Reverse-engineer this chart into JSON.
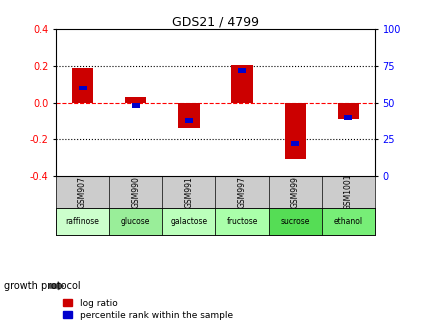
{
  "title": "GDS21 / 4799",
  "samples": [
    "GSM907",
    "GSM990",
    "GSM991",
    "GSM997",
    "GSM999",
    "GSM1001"
  ],
  "protocols": [
    "raffinose",
    "glucose",
    "galactose",
    "fructose",
    "sucrose",
    "ethanol"
  ],
  "log_ratios": [
    0.19,
    0.03,
    -0.14,
    0.205,
    -0.305,
    -0.09
  ],
  "percentile_ranks": [
    60,
    48,
    38,
    72,
    22,
    40
  ],
  "bar_color": "#cc0000",
  "pct_color": "#0000cc",
  "ylim": [
    -0.4,
    0.4
  ],
  "y2lim": [
    0,
    100
  ],
  "yticks": [
    -0.4,
    -0.2,
    0.0,
    0.2,
    0.4
  ],
  "y2ticks": [
    0,
    25,
    50,
    75,
    100
  ],
  "hlines": [
    -0.2,
    0.0,
    0.2
  ],
  "hline_styles": [
    "dotted",
    "dashed",
    "dotted"
  ],
  "hline_colors": [
    "black",
    "red",
    "black"
  ],
  "background_color": "#ffffff",
  "plot_bg": "#ffffff",
  "gsm_bg": "#cccccc",
  "protocol_colors": [
    "#ccffcc",
    "#99ee99",
    "#bbffbb",
    "#aaffaa",
    "#55dd55",
    "#77ee77"
  ],
  "bar_width": 0.4,
  "pct_bar_width": 0.15,
  "legend_red": "log ratio",
  "legend_blue": "percentile rank within the sample",
  "growth_protocol_label": "growth protocol"
}
